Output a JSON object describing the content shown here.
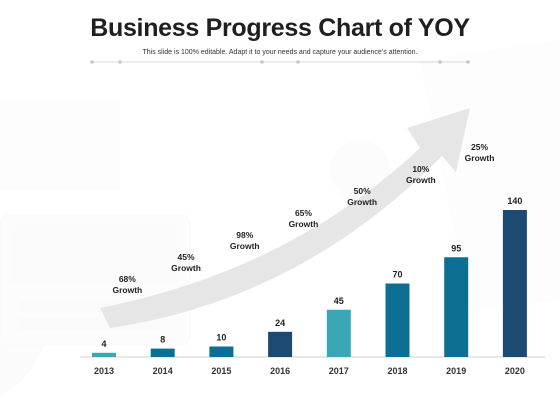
{
  "header": {
    "title": "Business Progress Chart of YOY",
    "subtitle": "This slide is 100% editable. Adapt it to your needs and capture your audience’s attention."
  },
  "colors": {
    "light": "#3aa7b5",
    "mid": "#0c6e92",
    "dark": "#1c4a73",
    "arrow": "#e6e6e6",
    "label": "#222222",
    "year": "#333333"
  },
  "chart_data": {
    "type": "bar",
    "title": "Business Progress Chart of YOY",
    "xlabel": "",
    "ylabel": "",
    "categories": [
      "2013",
      "2014",
      "2015",
      "2016",
      "2017",
      "2018",
      "2019",
      "2020"
    ],
    "values": [
      4,
      8,
      10,
      24,
      45,
      70,
      95,
      140
    ],
    "bar_colors": [
      "#3aa7b5",
      "#0c6e92",
      "#0c6e92",
      "#1c4a73",
      "#3aa7b5",
      "#0c6e92",
      "#0c6e92",
      "#1c4a73"
    ],
    "ylim": [
      0,
      140
    ],
    "grid": false,
    "legend": "none",
    "growth_labels": [
      {
        "between": [
          "2013",
          "2014"
        ],
        "percent": "68%",
        "word": "Growth"
      },
      {
        "between": [
          "2014",
          "2015"
        ],
        "percent": "45%",
        "word": "Growth"
      },
      {
        "between": [
          "2015",
          "2016"
        ],
        "percent": "98%",
        "word": "Growth"
      },
      {
        "between": [
          "2016",
          "2017"
        ],
        "percent": "65%",
        "word": "Growth"
      },
      {
        "between": [
          "2017",
          "2018"
        ],
        "percent": "50%",
        "word": "Growth"
      },
      {
        "between": [
          "2018",
          "2019"
        ],
        "percent": "10%",
        "word": "Growth"
      },
      {
        "between": [
          "2019",
          "2020"
        ],
        "percent": "25%",
        "word": "Growth"
      }
    ]
  }
}
